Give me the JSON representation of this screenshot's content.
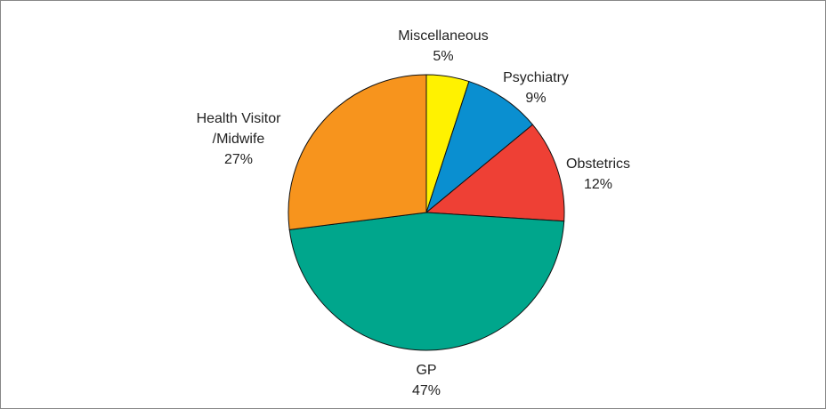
{
  "chart_data": {
    "type": "pie",
    "categories": [
      "Miscellaneous",
      "Psychiatry",
      "Obstetrics",
      "GP",
      "Health Visitor\n/Midwife"
    ],
    "values": [
      5,
      9,
      12,
      47,
      27
    ],
    "value_labels": [
      "5%",
      "9%",
      "12%",
      "47%",
      "27%"
    ],
    "colors": [
      "#fff200",
      "#0a8fd0",
      "#ee4035",
      "#00a68c",
      "#f7941d"
    ]
  }
}
